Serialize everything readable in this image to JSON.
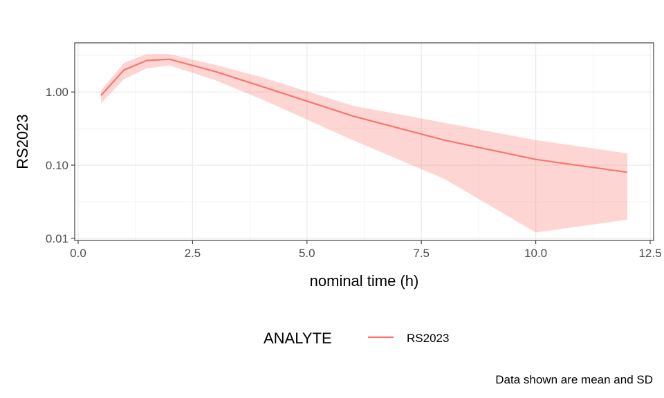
{
  "chart_data": {
    "type": "line",
    "title": "",
    "xlabel": "nominal time (h)",
    "ylabel": "RS2023",
    "x_scale": "linear",
    "y_scale": "log10",
    "xlim": [
      0,
      12.5
    ],
    "ylim": [
      0.01,
      4.5
    ],
    "x_ticks": [
      0,
      2.5,
      5,
      7.5,
      10,
      12.5
    ],
    "x_tick_labels": [
      "0.0",
      "2.5",
      "5.0",
      "7.5",
      "10.0",
      "12.5"
    ],
    "y_ticks": [
      0.01,
      0.1,
      1
    ],
    "y_tick_labels": [
      "0.01",
      "0.10",
      "1.00"
    ],
    "grid": true,
    "legend": {
      "title": "ANALYTE",
      "position": "bottom",
      "entries": [
        "RS2023"
      ]
    },
    "caption": "Data shown are mean and SD",
    "series": [
      {
        "name": "RS2023",
        "color": "#F8766D",
        "ribbon_color": "#F8766D",
        "x": [
          0.5,
          1.0,
          1.5,
          2.0,
          3.0,
          4.0,
          6.0,
          8.0,
          10.0,
          12.0
        ],
        "mean": [
          0.9,
          2.0,
          2.7,
          2.8,
          1.9,
          1.2,
          0.47,
          0.22,
          0.12,
          0.08
        ],
        "lower": [
          0.7,
          1.5,
          2.1,
          2.3,
          1.45,
          0.8,
          0.22,
          0.065,
          0.012,
          0.018
        ],
        "upper": [
          1.05,
          2.5,
          3.3,
          3.3,
          2.35,
          1.6,
          0.65,
          0.38,
          0.22,
          0.145
        ]
      }
    ]
  }
}
